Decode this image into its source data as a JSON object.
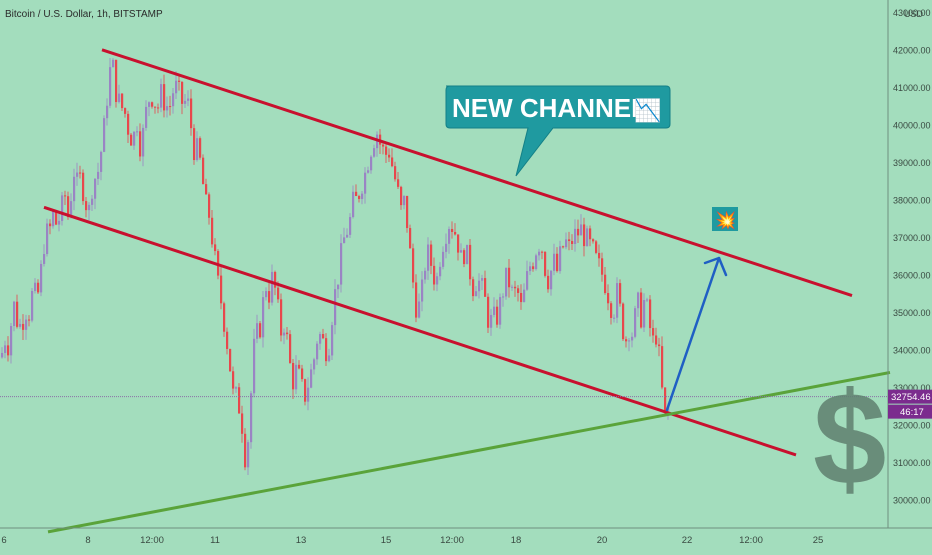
{
  "header": {
    "symbol_title": "Bitcoin / U.S. Dollar, 1h, BITSTAMP"
  },
  "price_axis": {
    "currency": "USD",
    "ticks": [
      "43000.00",
      "42000.00",
      "41000.00",
      "40000.00",
      "39000.00",
      "38000.00",
      "37000.00",
      "36000.00",
      "35000.00",
      "34000.00",
      "33000.00",
      "32000.00",
      "31000.00",
      "30000.00"
    ],
    "tick_values": [
      43000,
      42000,
      41000,
      40000,
      39000,
      38000,
      37000,
      36000,
      35000,
      34000,
      33000,
      32000,
      31000,
      30000
    ],
    "last_price": "32754.46",
    "last_price_value": 32754.46,
    "countdown": "46:17"
  },
  "time_axis": {
    "labels": [
      "6",
      "8",
      "12:00",
      "11",
      "13",
      "15",
      "12:00",
      "18",
      "20",
      "22",
      "12:00",
      "25"
    ]
  },
  "annotation": {
    "callout_text": "NEW CHANNEL",
    "callout_emoji": "📉",
    "target_emoji": "💥",
    "dollar_sign": "$"
  },
  "colors": {
    "background": "#a3ddbd",
    "candle_up": "#9a84c4",
    "candle_down": "#e8474c",
    "channel_line": "#c8102e",
    "support_line": "#5aa33a",
    "arrow": "#1f5fc4",
    "callout_fill": "#1f9aa0",
    "price_badge": "#7b2c8e"
  },
  "chart_data": {
    "type": "candlestick",
    "title": "Bitcoin / U.S. Dollar, 1h, BITSTAMP",
    "ylabel": "USD",
    "ylim": [
      29200,
      43300
    ],
    "x_tick_labels": [
      "6",
      "8",
      "12:00",
      "11",
      "13",
      "15",
      "12:00",
      "18",
      "20",
      "22",
      "12:00",
      "25"
    ],
    "close_path": [
      [
        0,
        33800
      ],
      [
        4,
        34300
      ],
      [
        8,
        34100
      ],
      [
        12,
        35300
      ],
      [
        16,
        34800
      ],
      [
        20,
        34600
      ],
      [
        24,
        35100
      ],
      [
        28,
        35000
      ],
      [
        32,
        35600
      ],
      [
        36,
        35300
      ],
      [
        40,
        36100
      ],
      [
        44,
        37100
      ],
      [
        48,
        37100
      ],
      [
        52,
        37600
      ],
      [
        56,
        37300
      ],
      [
        60,
        37700
      ],
      [
        64,
        38100
      ],
      [
        68,
        37400
      ],
      [
        72,
        38900
      ],
      [
        76,
        38400
      ],
      [
        80,
        38600
      ],
      [
        84,
        38000
      ],
      [
        88,
        37700
      ],
      [
        92,
        38600
      ],
      [
        96,
        38600
      ],
      [
        100,
        39300
      ],
      [
        104,
        40100
      ],
      [
        108,
        41400
      ],
      [
        112,
        41500
      ],
      [
        116,
        40700
      ],
      [
        120,
        40500
      ],
      [
        124,
        40300
      ],
      [
        128,
        39800
      ],
      [
        132,
        39600
      ],
      [
        136,
        40100
      ],
      [
        140,
        39300
      ],
      [
        144,
        40200
      ],
      [
        148,
        40700
      ],
      [
        152,
        40800
      ],
      [
        156,
        40400
      ],
      [
        160,
        40800
      ],
      [
        164,
        40600
      ],
      [
        168,
        40400
      ],
      [
        172,
        40900
      ],
      [
        176,
        41000
      ],
      [
        180,
        40600
      ],
      [
        184,
        40600
      ],
      [
        188,
        40500
      ],
      [
        192,
        39400
      ],
      [
        196,
        39300
      ],
      [
        200,
        38900
      ],
      [
        204,
        37900
      ],
      [
        208,
        37600
      ],
      [
        212,
        36800
      ],
      [
        216,
        35900
      ],
      [
        220,
        35300
      ],
      [
        224,
        34600
      ],
      [
        228,
        33800
      ],
      [
        232,
        32800
      ],
      [
        236,
        32700
      ],
      [
        240,
        32300
      ],
      [
        244,
        31200
      ],
      [
        248,
        31800
      ],
      [
        252,
        33900
      ],
      [
        256,
        34400
      ],
      [
        260,
        34700
      ],
      [
        264,
        35800
      ],
      [
        268,
        35500
      ],
      [
        272,
        36000
      ],
      [
        276,
        35200
      ],
      [
        280,
        34500
      ],
      [
        284,
        34800
      ],
      [
        288,
        33700
      ],
      [
        292,
        33200
      ],
      [
        296,
        33500
      ],
      [
        300,
        33000
      ],
      [
        304,
        32800
      ],
      [
        308,
        33200
      ],
      [
        312,
        33600
      ],
      [
        316,
        34300
      ],
      [
        320,
        34400
      ],
      [
        324,
        34000
      ],
      [
        328,
        34200
      ],
      [
        332,
        35200
      ],
      [
        336,
        35800
      ],
      [
        340,
        36500
      ],
      [
        344,
        37100
      ],
      [
        348,
        37300
      ],
      [
        352,
        37900
      ],
      [
        356,
        38000
      ],
      [
        360,
        38400
      ],
      [
        364,
        38700
      ],
      [
        368,
        39200
      ],
      [
        372,
        39600
      ],
      [
        376,
        39800
      ],
      [
        380,
        39400
      ],
      [
        384,
        39200
      ],
      [
        388,
        39300
      ],
      [
        392,
        38800
      ],
      [
        396,
        38300
      ],
      [
        400,
        37700
      ],
      [
        404,
        38000
      ],
      [
        408,
        36800
      ],
      [
        412,
        35800
      ],
      [
        416,
        35000
      ],
      [
        420,
        35300
      ],
      [
        424,
        36300
      ],
      [
        428,
        36600
      ],
      [
        432,
        36000
      ],
      [
        436,
        35900
      ],
      [
        440,
        36700
      ],
      [
        444,
        37100
      ],
      [
        448,
        37400
      ],
      [
        452,
        37300
      ],
      [
        456,
        37000
      ],
      [
        460,
        36400
      ],
      [
        464,
        36700
      ],
      [
        468,
        36200
      ],
      [
        472,
        35700
      ],
      [
        476,
        35900
      ],
      [
        480,
        35700
      ],
      [
        484,
        35300
      ],
      [
        488,
        34700
      ],
      [
        492,
        34800
      ],
      [
        496,
        34900
      ],
      [
        500,
        35300
      ],
      [
        504,
        35900
      ],
      [
        508,
        35800
      ],
      [
        512,
        35400
      ],
      [
        516,
        35600
      ],
      [
        520,
        35100
      ],
      [
        524,
        35600
      ],
      [
        528,
        36200
      ],
      [
        532,
        36400
      ],
      [
        536,
        36800
      ],
      [
        540,
        36900
      ],
      [
        544,
        36200
      ],
      [
        548,
        35800
      ],
      [
        552,
        36400
      ],
      [
        556,
        36100
      ],
      [
        560,
        36600
      ],
      [
        564,
        36900
      ],
      [
        568,
        36700
      ],
      [
        572,
        37000
      ],
      [
        576,
        37100
      ],
      [
        580,
        37200
      ],
      [
        584,
        37000
      ],
      [
        588,
        36800
      ],
      [
        592,
        36600
      ],
      [
        596,
        36300
      ],
      [
        600,
        36100
      ],
      [
        604,
        35800
      ],
      [
        608,
        35400
      ],
      [
        612,
        35000
      ],
      [
        616,
        35500
      ],
      [
        620,
        34900
      ],
      [
        624,
        34200
      ],
      [
        628,
        34600
      ],
      [
        632,
        34400
      ],
      [
        636,
        35300
      ],
      [
        640,
        34900
      ],
      [
        644,
        35400
      ],
      [
        648,
        34700
      ],
      [
        652,
        34200
      ],
      [
        656,
        34500
      ],
      [
        660,
        33100
      ],
      [
        664,
        32200
      ],
      [
        668,
        32500
      ]
    ],
    "candle_count": 223,
    "channel_upper": {
      "from": {
        "x": 102,
        "price": 42000
      },
      "to": {
        "x": 852,
        "price": 35450
      }
    },
    "channel_lower": {
      "from": {
        "x": 44,
        "price": 37800
      },
      "to": {
        "x": 796,
        "price": 31200
      }
    },
    "support_line": {
      "from": {
        "x": 48,
        "price": 29150
      },
      "to": {
        "x": 890,
        "price": 33400
      }
    },
    "projection_arrow": {
      "from": {
        "x": 667,
        "price": 32400
      },
      "to": {
        "x": 719,
        "price": 36450
      }
    },
    "current_price": 32754.46,
    "grid": false,
    "legend": "none"
  }
}
